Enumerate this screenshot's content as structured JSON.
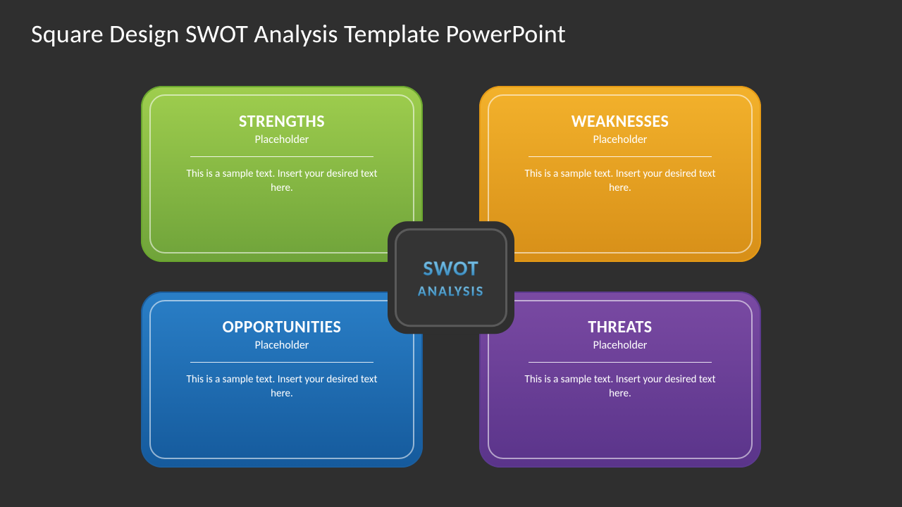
{
  "background_color": "#2f2f2f",
  "slide": {
    "title": "Square Design SWOT Analysis Template PowerPoint",
    "title_color": "#ffffff",
    "title_fontsize": 36
  },
  "center_badge": {
    "line1": "SWOT",
    "line2": "ANALYSIS",
    "text_gradient_top": "#8fcff0",
    "text_gradient_bottom": "#1f6ea8",
    "badge_bg": "#343434",
    "badge_border": "#5a5a5a",
    "outer_bg": "#2f2f2f",
    "border_radius": 28
  },
  "quadrants": {
    "border_radius": 30,
    "inner_border_color": "rgba(255,255,255,0.55)",
    "rule_width": 260,
    "title_fontsize": 24,
    "sub_fontsize": 16,
    "body_fontsize": 15,
    "items": [
      {
        "key": "strengths",
        "position": "tl",
        "title": "STRENGTHS",
        "subtitle": "Placeholder",
        "body": "This is a sample text. Insert your desired text here.",
        "gradient_top": "#9fce4e",
        "gradient_bottom": "#6fa33a",
        "outer_border": "#6aa62e"
      },
      {
        "key": "weaknesses",
        "position": "tr",
        "title": "WEAKNESSES",
        "subtitle": "Placeholder",
        "body": "This is a sample text. Insert your desired text here.",
        "gradient_top": "#f3b22c",
        "gradient_bottom": "#d78f18",
        "outer_border": "#e59a15"
      },
      {
        "key": "opportunities",
        "position": "bl",
        "title": "OPPORTUNITIES",
        "subtitle": "Placeholder",
        "body": "This is a sample text. Insert your desired text here.",
        "gradient_top": "#2a7fc7",
        "gradient_bottom": "#155a9c",
        "outer_border": "#1b5e9e"
      },
      {
        "key": "threats",
        "position": "br",
        "title": "THREATS",
        "subtitle": "Placeholder",
        "body": "This is a sample text. Insert your desired text here.",
        "gradient_top": "#7a4aa3",
        "gradient_bottom": "#5a348a",
        "outer_border": "#5c3a8e"
      }
    ]
  }
}
